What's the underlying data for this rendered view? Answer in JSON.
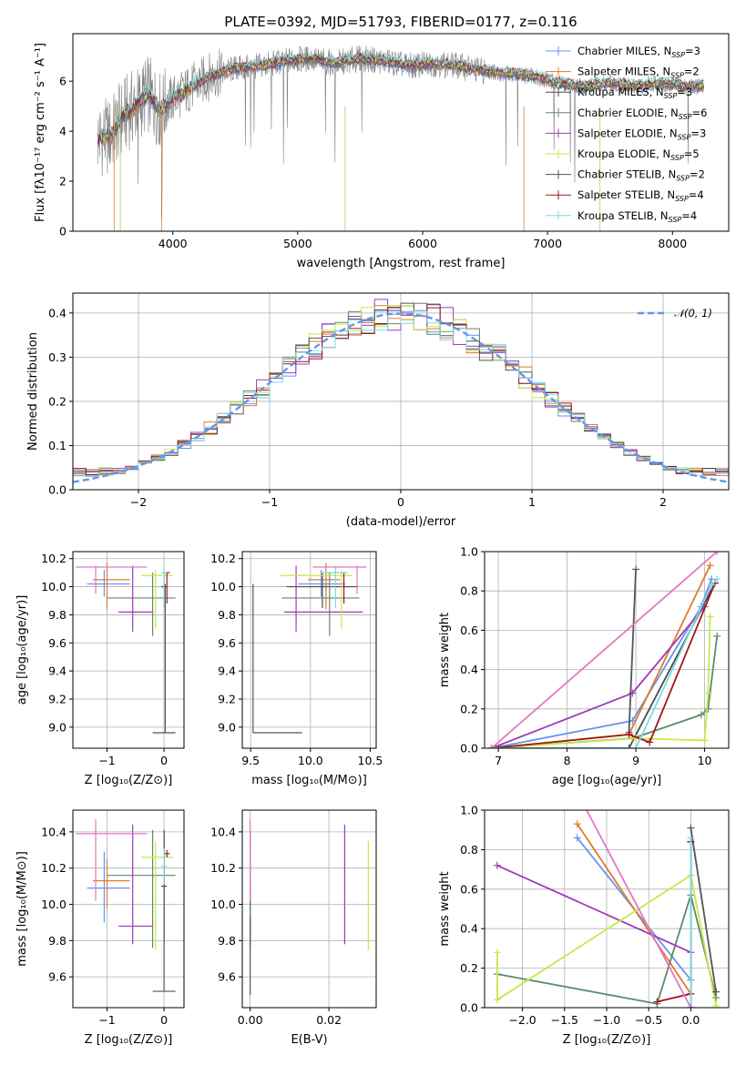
{
  "colors": {
    "chabrier_miles": "#6495ed",
    "salpeter_miles": "#e07b2a",
    "kroupa_miles": "#4a4a4a",
    "chabrier_elodie": "#5f8a6a",
    "salpeter_elodie": "#9b3cb8",
    "kroupa_elodie": "#c8e84a",
    "chabrier_stelib": "#555555",
    "salpeter_stelib": "#a01818",
    "kroupa_stelib": "#7fd9df",
    "pink": "#e377c2",
    "gray_spec": "#808080"
  },
  "chart_data": [
    {
      "id": "spectrum",
      "type": "line",
      "title": "PLATE=0392, MJD=51793, FIBERID=0177, z=0.116",
      "xlabel": "wavelength [Angstrom, rest frame]",
      "ylabel": "Flux [fλ10⁻¹⁷ erg cm⁻² s⁻¹ A⁻¹]",
      "xlim": [
        3200,
        8450
      ],
      "ylim": [
        0,
        7.9
      ],
      "xticks": [
        4000,
        5000,
        6000,
        7000,
        8000
      ],
      "yticks": [
        0,
        2,
        4,
        6
      ],
      "grid": false,
      "legend_position": "top-right",
      "legend": [
        "Chabrier MILES, N_SSP=3",
        "Salpeter MILES, N_SSP=2",
        "Kroupa MILES, N_SSP=3",
        "Chabrier ELODIE, N_SSP=6",
        "Salpeter ELODIE, N_SSP=3",
        "Kroupa ELODIE, N_SSP=5",
        "Chabrier STELIB, N_SSP=2",
        "Salpeter STELIB, N_SSP=4",
        "Kroupa STELIB, N_SSP=4"
      ],
      "data_envelope": {
        "x": [
          3400,
          3500,
          3600,
          3700,
          3800,
          3900,
          4000,
          4100,
          4300,
          4500,
          4700,
          4900,
          5100,
          5300,
          5500,
          5700,
          5900,
          6100,
          6300,
          6500,
          6700,
          6900,
          7100,
          7300,
          7500,
          7700,
          7900,
          8100,
          8200
        ],
        "y": [
          3.7,
          3.8,
          4.6,
          5.0,
          5.5,
          4.8,
          5.3,
          5.6,
          6.2,
          6.5,
          6.6,
          6.8,
          6.9,
          6.7,
          6.9,
          6.8,
          6.6,
          6.7,
          6.6,
          6.4,
          6.3,
          6.2,
          5.9,
          5.8,
          5.9,
          5.8,
          5.9,
          5.8,
          5.8
        ]
      }
    },
    {
      "id": "residual-hist",
      "type": "bar",
      "xlabel": "(data-model)/error",
      "ylabel": "Normed distribution",
      "xlim": [
        -2.5,
        2.5
      ],
      "ylim": [
        0,
        0.445
      ],
      "xticks": [
        -2,
        -1,
        0,
        1,
        2
      ],
      "yticks": [
        0.0,
        0.1,
        0.2,
        0.3,
        0.4
      ],
      "grid": true,
      "legend_position": "top-right",
      "legend": [
        "𝒩(0, 1)"
      ]
    },
    {
      "id": "age-vs-Z",
      "type": "scatter",
      "xlabel": "Z [log₁₀(Z/Z⊙)]",
      "ylabel": "age  [log₁₀(age/yr)]",
      "xlim": [
        -1.6,
        0.35
      ],
      "ylim": [
        8.85,
        10.25
      ],
      "xticks": [
        -1,
        0
      ],
      "yticks": [
        9.0,
        9.2,
        9.4,
        9.6,
        9.8,
        10.0,
        10.2
      ],
      "grid": true
    },
    {
      "id": "age-vs-mass",
      "type": "scatter",
      "xlabel": "mass [log₁₀(M/M⊙)]",
      "xlim": [
        9.43,
        10.55
      ],
      "ylim": [
        8.85,
        10.25
      ],
      "xticks": [
        9.5,
        10.0,
        10.5
      ],
      "yticks": [
        9.0,
        9.2,
        9.4,
        9.6,
        9.8,
        10.0,
        10.2
      ],
      "grid": true
    },
    {
      "id": "massweight-vs-age",
      "type": "line",
      "xlabel": "age  [log₁₀(age/yr)]",
      "ylabel": "mass weight",
      "xlim": [
        6.8,
        10.35
      ],
      "ylim": [
        0,
        1.0
      ],
      "xticks": [
        7,
        8,
        9,
        10
      ],
      "yticks": [
        0.0,
        0.2,
        0.4,
        0.6,
        0.8,
        1.0
      ],
      "grid": true
    },
    {
      "id": "mass-vs-Z",
      "type": "scatter",
      "xlabel": "Z [log₁₀(Z/Z⊙)]",
      "ylabel": "mass [log₁₀(M/M⊙)]",
      "xlim": [
        -1.6,
        0.35
      ],
      "ylim": [
        9.43,
        10.52
      ],
      "xticks": [
        -1,
        0
      ],
      "yticks": [
        9.6,
        9.8,
        10.0,
        10.2,
        10.4
      ],
      "grid": true
    },
    {
      "id": "mass-vs-ebv",
      "type": "scatter",
      "xlabel": "E(B-V)",
      "xlim": [
        -0.002,
        0.032
      ],
      "ylim": [
        9.43,
        10.52
      ],
      "xticks": [
        0.0,
        0.02
      ],
      "yticks": [
        9.6,
        9.8,
        10.0,
        10.2,
        10.4
      ],
      "grid": true
    },
    {
      "id": "massweight-vs-Z",
      "type": "line",
      "xlabel": "Z [log₁₀(Z/Z⊙)]",
      "ylabel": "mass weight",
      "xlim": [
        -2.45,
        0.45
      ],
      "ylim": [
        0,
        1.0
      ],
      "xticks": [
        -2.0,
        -1.5,
        -1.0,
        -0.5,
        0.0
      ],
      "yticks": [
        0.0,
        0.2,
        0.4,
        0.6,
        0.8,
        1.0
      ],
      "grid": true
    }
  ],
  "models": [
    {
      "key": "chabrier_miles",
      "Z": -1.05,
      "Zerr": [
        -1.35,
        -0.6
      ],
      "age": 10.02,
      "ageerr": [
        9.93,
        10.12
      ],
      "mass": 10.09,
      "masserr": [
        9.9,
        10.29
      ],
      "ebv": 0.0,
      "ebverr": [
        0.0,
        0.0
      ],
      "ssp_age": [
        6.9,
        8.95,
        9.95,
        10.1
      ],
      "ssp_w": [
        0.0,
        0.14,
        0.72,
        0.86
      ],
      "ssp_Z": [
        -1.35,
        0.0,
        0.0
      ],
      "ssp_Zw": [
        0.86,
        0.14,
        0.0
      ]
    },
    {
      "key": "salpeter_miles",
      "Z": -1.0,
      "Zerr": [
        -1.25,
        -0.6
      ],
      "age": 10.05,
      "ageerr": [
        9.84,
        10.17
      ],
      "mass": 10.13,
      "masserr": [
        9.98,
        10.25
      ],
      "ebv": 0.0,
      "ebverr": [
        0.0,
        0.0
      ],
      "ssp_age": [
        6.9,
        8.9,
        10.08
      ],
      "ssp_w": [
        0.0,
        0.07,
        0.93
      ],
      "ssp_Z": [
        -1.35,
        0.0
      ],
      "ssp_Zw": [
        0.93,
        0.07
      ]
    },
    {
      "key": "kroupa_miles",
      "Z": 0.0,
      "Zerr": [
        -0.05,
        0.05
      ],
      "age": 10.0,
      "ageerr": [
        9.85,
        10.1
      ],
      "mass": 10.1,
      "masserr": [
        9.8,
        10.4
      ],
      "ebv": 0.0,
      "ebverr": [
        0.0,
        0.0
      ],
      "ssp_age": [
        6.9,
        8.9,
        10.15
      ],
      "ssp_w": [
        0.0,
        0.0,
        0.84
      ],
      "ssp_Z": [
        0.0,
        0.0
      ],
      "ssp_Zw": [
        0.84,
        0.0
      ]
    },
    {
      "key": "chabrier_elodie",
      "Z": -0.2,
      "Zerr": [
        -1.0,
        0.2
      ],
      "age": 9.92,
      "ageerr": [
        9.65,
        10.1
      ],
      "mass": 10.16,
      "masserr": [
        9.76,
        10.41
      ],
      "ebv": 0.0,
      "ebverr": [
        0.0,
        0.0
      ],
      "ssp_age": [
        6.9,
        8.95,
        9.95,
        10.05,
        10.18
      ],
      "ssp_w": [
        0.0,
        0.05,
        0.17,
        0.2,
        0.57
      ],
      "ssp_Z": [
        -2.3,
        -0.4,
        0.0,
        0.3
      ],
      "ssp_Zw": [
        0.17,
        0.02,
        0.57,
        0.05
      ]
    },
    {
      "key": "salpeter_elodie",
      "Z": -0.55,
      "Zerr": [
        -0.8,
        -0.2
      ],
      "age": 9.82,
      "ageerr": [
        9.68,
        10.15
      ],
      "mass": 9.88,
      "masserr": [
        9.78,
        10.44
      ],
      "ebv": 0.024,
      "ebverr": [
        0.024,
        0.024
      ],
      "ssp_age": [
        6.9,
        8.95,
        10.0
      ],
      "ssp_w": [
        0.0,
        0.28,
        0.72
      ],
      "ssp_Z": [
        -2.3,
        0.0,
        0.0
      ],
      "ssp_Zw": [
        0.72,
        0.28,
        0.0
      ]
    },
    {
      "key": "kroupa_elodie",
      "Z": -0.15,
      "Zerr": [
        -0.4,
        0.15
      ],
      "age": 10.08,
      "ageerr": [
        9.7,
        10.12
      ],
      "mass": 10.26,
      "masserr": [
        9.75,
        10.35
      ],
      "ebv": 0.03,
      "ebverr": [
        0.03,
        0.03
      ],
      "ssp_age": [
        6.9,
        9.0,
        10.0,
        10.05,
        10.08
      ],
      "ssp_w": [
        0.0,
        0.05,
        0.04,
        0.28,
        0.67
      ],
      "ssp_Z": [
        -2.3,
        -2.3,
        0.0,
        0.3
      ],
      "ssp_Zw": [
        0.28,
        0.04,
        0.67,
        0.01
      ]
    },
    {
      "key": "chabrier_stelib",
      "Z": 0.0,
      "Zerr": [
        -0.2,
        0.2
      ],
      "age": 8.96,
      "ageerr": [
        8.96,
        8.96
      ],
      "mass": 9.52,
      "masserr": [
        9.52,
        9.52
      ],
      "ebv": 0.0,
      "ebverr": [
        0.0,
        0.0
      ],
      "vlines": {
        "age_Z": [
          8.96,
          10.02
        ],
        "age_mass": [
          8.96,
          10.02
        ],
        "mass_Z": [
          9.52,
          10.41
        ],
        "mass_ebv": [
          9.5,
          9.93
        ]
      },
      "ssp_age": [
        8.9,
        9.0
      ],
      "ssp_w": [
        0.08,
        0.91
      ],
      "ssp_Z": [
        0.0,
        0.3
      ],
      "ssp_Zw": [
        0.91,
        0.08
      ]
    },
    {
      "key": "salpeter_stelib",
      "Z": 0.05,
      "Zerr": [
        0.0,
        0.1
      ],
      "age": 10.1,
      "ageerr": [
        9.88,
        10.1
      ],
      "mass": 10.28,
      "masserr": [
        10.26,
        10.3
      ],
      "ebv": 0.0,
      "ebverr": [
        0.0,
        0.0
      ],
      "ssp_age": [
        6.9,
        8.9,
        9.2,
        10.15
      ],
      "ssp_w": [
        0.0,
        0.07,
        0.03,
        0.84
      ],
      "ssp_Z": [
        -0.4,
        0.0,
        0.0
      ],
      "ssp_Zw": [
        0.03,
        0.07,
        0.84
      ]
    },
    {
      "key": "kroupa_stelib",
      "Z": 0.0,
      "Zerr": [
        -0.05,
        0.05
      ],
      "age": 10.1,
      "ageerr": [
        9.85,
        10.15
      ],
      "mass": 10.21,
      "masserr": [
        10.11,
        10.31
      ],
      "ebv": 0.0,
      "ebverr": [
        0.0,
        0.0
      ],
      "ssp_age": [
        6.9,
        9.0,
        10.1,
        10.18
      ],
      "ssp_w": [
        0.0,
        0.0,
        0.83,
        0.86
      ],
      "ssp_Z": [
        0.0,
        0.0
      ],
      "ssp_Zw": [
        0.86,
        0.0
      ]
    },
    {
      "key": "pink",
      "Z": -1.2,
      "Zerr": [
        -1.55,
        -0.3
      ],
      "age": 10.14,
      "ageerr": [
        9.95,
        10.15
      ],
      "mass": 10.39,
      "masserr": [
        10.02,
        10.47
      ],
      "ebv": 0.0,
      "ebverr": [
        0.0,
        0.0
      ],
      "ssp_age": [
        6.9,
        10.18
      ],
      "ssp_w": [
        0.0,
        1.0
      ],
      "ssp_Z": [
        -1.3,
        0.0
      ],
      "ssp_Zw": [
        1.05,
        0.0
      ]
    }
  ]
}
